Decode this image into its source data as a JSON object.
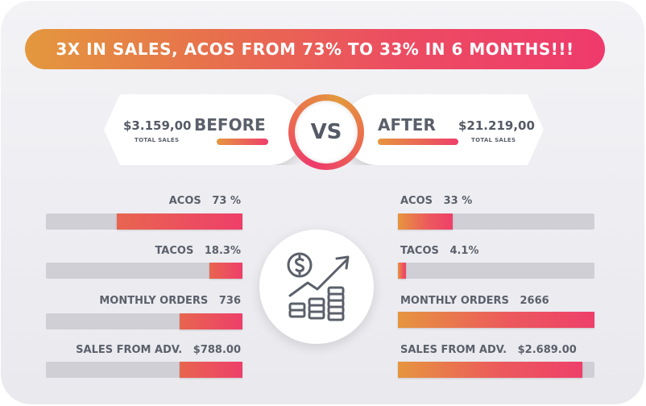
{
  "headline": "3X IN SALES, ACOS FROM 73% TO 33% IN 6 MONTHS!!!",
  "vs_label": "VS",
  "before": {
    "label": "BEFORE",
    "amount": "$3.159,00",
    "sub": "TOTAL SALES",
    "metrics": [
      {
        "label": "ACOS",
        "value": "73 %",
        "fill": 0.64
      },
      {
        "label": "TACOS",
        "value": "18.3%",
        "fill": 0.17
      },
      {
        "label": "MONTHLY ORDERS",
        "value": "736",
        "fill": 0.32
      },
      {
        "label": "SALES FROM ADV.",
        "value": "$788.00",
        "fill": 0.32
      }
    ]
  },
  "after": {
    "label": "AFTER",
    "amount": "$21.219,00",
    "sub": "TOTAL SALES",
    "metrics": [
      {
        "label": "ACOS",
        "value": "33 %",
        "fill": 0.28
      },
      {
        "label": "TACOS",
        "value": "4.1%",
        "fill": 0.04
      },
      {
        "label": "MONTHLY ORDERS",
        "value": "2666",
        "fill": 1.0
      },
      {
        "label": "SALES FROM ADV.",
        "value": "$2.689.00",
        "fill": 0.94
      }
    ]
  },
  "icon": "money-growth-icon",
  "colors": {
    "accent_orange": "#e4983d",
    "accent_pink": "#ef3a6c",
    "text": "#5b606b",
    "track": "#cfcfd5"
  }
}
